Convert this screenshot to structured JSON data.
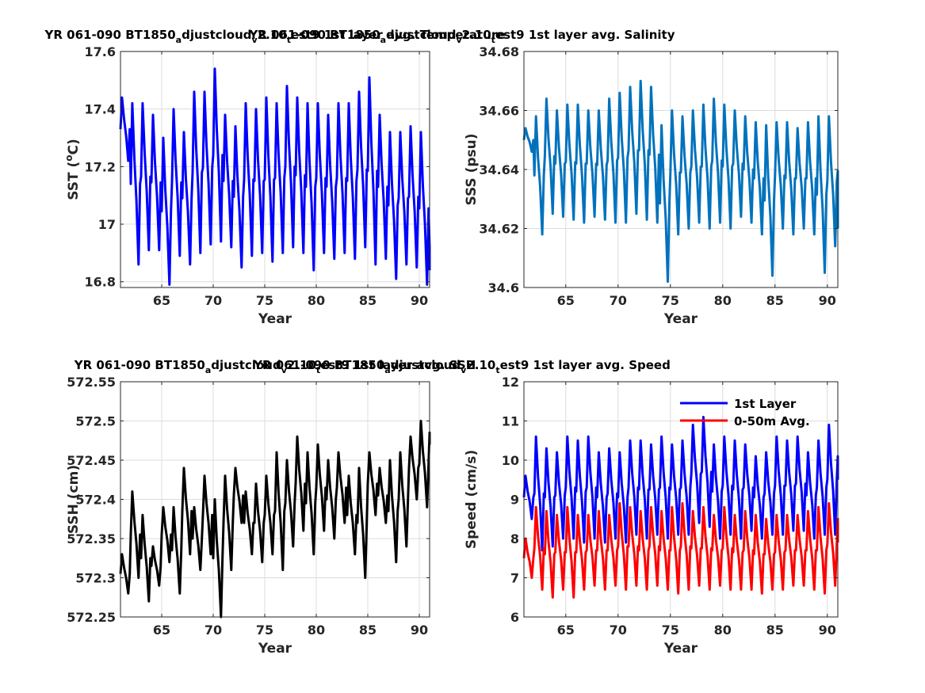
{
  "chart_data": [
    {
      "type": "line",
      "title": "YR 061-090 BT1850_adjustcloud_v2.10_test9 1st layer avg. Temperature",
      "title_parts": [
        "YR 061-090 BT1850",
        "a",
        "djustcloud",
        "v",
        "2.10",
        "t",
        "est9 1st layer avg. Temperature"
      ],
      "xlabel": "Year",
      "ylabel": "SST (",
      "ylabel_sup": "o",
      "ylabel_rest": "C)",
      "xlim": [
        61,
        91
      ],
      "ylim": [
        16.78,
        17.6
      ],
      "xticks": [
        65,
        70,
        75,
        80,
        85,
        90
      ],
      "yticks": [
        16.8,
        17,
        17.2,
        17.4,
        17.6
      ],
      "ytick_labels": [
        "16.8",
        "17",
        "17.2",
        "17.4",
        "17.6"
      ],
      "grid": true,
      "series": [
        {
          "color": "#0000ff",
          "linewidth": 3,
          "x": [
            61,
            62,
            63,
            64,
            65,
            66,
            67,
            68,
            69,
            70,
            71,
            72,
            73,
            74,
            75,
            76,
            77,
            78,
            79,
            80,
            81,
            82,
            83,
            84,
            85,
            86,
            87,
            88,
            89,
            90,
            91
          ],
          "max": [
            17.44,
            17.42,
            17.42,
            17.38,
            17.3,
            17.4,
            17.32,
            17.46,
            17.46,
            17.54,
            17.38,
            17.34,
            17.42,
            17.4,
            17.44,
            17.42,
            17.48,
            17.44,
            17.42,
            17.42,
            17.38,
            17.42,
            17.42,
            17.46,
            17.51,
            17.38,
            17.32,
            17.32,
            17.34,
            17.32,
            17.0
          ],
          "min": [
            17.22,
            16.86,
            16.91,
            16.91,
            16.79,
            16.89,
            16.86,
            16.9,
            16.93,
            16.94,
            16.92,
            16.85,
            16.89,
            16.9,
            16.87,
            16.9,
            16.92,
            16.9,
            16.84,
            16.9,
            16.88,
            16.9,
            16.88,
            16.92,
            16.86,
            16.88,
            16.81,
            16.86,
            16.85,
            16.79,
            16.84
          ]
        }
      ]
    },
    {
      "type": "line",
      "title": "YR 061-090 BT1850_adjustcloud_v2.10_test9 1st layer avg. Salinity",
      "title_parts": [
        "YR 061-090 BT1850",
        "a",
        "djustcloud",
        "v",
        "2.10",
        "t",
        "est9 1st layer avg. Salinity"
      ],
      "xlabel": "Year",
      "ylabel": "SSS (psu)",
      "xlim": [
        61,
        91
      ],
      "ylim": [
        34.6,
        34.68
      ],
      "xticks": [
        65,
        70,
        75,
        80,
        85,
        90
      ],
      "yticks": [
        34.6,
        34.62,
        34.64,
        34.66,
        34.68
      ],
      "ytick_labels": [
        "34.6",
        "34.62",
        "34.64",
        "34.66",
        "34.68"
      ],
      "grid": true,
      "series": [
        {
          "color": "#0072bd",
          "linewidth": 3,
          "x": [
            61,
            62,
            63,
            64,
            65,
            66,
            67,
            68,
            69,
            70,
            71,
            72,
            73,
            74,
            75,
            76,
            77,
            78,
            79,
            80,
            81,
            82,
            83,
            84,
            85,
            86,
            87,
            88,
            89,
            90,
            91
          ],
          "max": [
            34.654,
            34.658,
            34.664,
            34.66,
            34.662,
            34.662,
            34.66,
            34.66,
            34.664,
            34.666,
            34.668,
            34.67,
            34.668,
            34.655,
            34.66,
            34.658,
            34.66,
            34.662,
            34.664,
            34.662,
            34.66,
            34.658,
            34.656,
            34.655,
            34.656,
            34.656,
            34.654,
            34.656,
            34.658,
            34.658,
            34.659
          ],
          "min": [
            34.646,
            34.618,
            34.625,
            34.624,
            34.623,
            34.622,
            34.624,
            34.623,
            34.622,
            34.622,
            34.625,
            34.623,
            34.622,
            34.602,
            34.618,
            34.62,
            34.622,
            34.62,
            34.622,
            34.62,
            34.624,
            34.622,
            34.618,
            34.604,
            34.62,
            34.618,
            34.62,
            34.618,
            34.605,
            34.614,
            34.62
          ]
        }
      ]
    },
    {
      "type": "line",
      "title": "YR 061-090 BT1850_adjustcloud_v2.10_test9 1st layer avg. SSH",
      "title_parts": [
        "YR 061-090 BT1850",
        "a",
        "djustcloud",
        "v",
        "2.10",
        "t",
        "est9 1st layer avg. SSH"
      ],
      "xlabel": "Year",
      "ylabel": "SSH (cm)",
      "xlim": [
        61,
        91
      ],
      "ylim": [
        572.25,
        572.55
      ],
      "xticks": [
        65,
        70,
        75,
        80,
        85,
        90
      ],
      "yticks": [
        572.25,
        572.3,
        572.35,
        572.4,
        572.45,
        572.5,
        572.55
      ],
      "ytick_labels": [
        "572.25",
        "572.3",
        "572.35",
        "572.4",
        "572.45",
        "572.5",
        "572.55"
      ],
      "grid": true,
      "series": [
        {
          "color": "#000000",
          "linewidth": 3,
          "x": [
            61,
            62,
            63,
            64,
            65,
            66,
            67,
            68,
            69,
            70,
            71,
            72,
            73,
            74,
            75,
            76,
            77,
            78,
            79,
            80,
            81,
            82,
            83,
            84,
            85,
            86,
            87,
            88,
            89,
            90,
            91
          ],
          "max": [
            572.33,
            572.41,
            572.38,
            572.34,
            572.39,
            572.39,
            572.44,
            572.39,
            572.43,
            572.4,
            572.43,
            572.44,
            572.41,
            572.42,
            572.43,
            572.46,
            572.45,
            572.48,
            572.46,
            572.47,
            572.45,
            572.46,
            572.43,
            572.44,
            572.46,
            572.44,
            572.45,
            572.46,
            572.48,
            572.5,
            572.5
          ],
          "min": [
            572.28,
            572.3,
            572.27,
            572.29,
            572.32,
            572.28,
            572.33,
            572.31,
            572.33,
            572.25,
            572.31,
            572.37,
            572.33,
            572.32,
            572.33,
            572.31,
            572.34,
            572.36,
            572.33,
            572.36,
            572.35,
            572.37,
            572.33,
            572.3,
            572.38,
            572.37,
            572.32,
            572.34,
            572.4,
            572.39,
            572.47
          ]
        }
      ]
    },
    {
      "type": "line",
      "title": "YR 061-090 BT1850_adjustcloud_v2.10_test9 1st layer avg. Speed",
      "title_parts": [
        "YR 061-090 BT1850",
        "a",
        "djustcloud",
        "v",
        "2.10",
        "t",
        "est9 1st layer avg. Speed"
      ],
      "xlabel": "Year",
      "ylabel": "Speed (cm/s)",
      "xlim": [
        61,
        91
      ],
      "ylim": [
        6,
        12
      ],
      "xticks": [
        65,
        70,
        75,
        80,
        85,
        90
      ],
      "yticks": [
        6,
        7,
        8,
        9,
        10,
        11,
        12
      ],
      "ytick_labels": [
        "6",
        "7",
        "8",
        "9",
        "10",
        "11",
        "12"
      ],
      "grid": true,
      "legend": "top-right",
      "series": [
        {
          "name": "1st Layer",
          "color": "#0000ff",
          "linewidth": 3,
          "x": [
            61,
            62,
            63,
            64,
            65,
            66,
            67,
            68,
            69,
            70,
            71,
            72,
            73,
            74,
            75,
            76,
            77,
            78,
            79,
            80,
            81,
            82,
            83,
            84,
            85,
            86,
            87,
            88,
            89,
            90,
            91
          ],
          "max": [
            9.6,
            10.6,
            10.3,
            10.2,
            10.6,
            10.5,
            10.6,
            10.2,
            10.3,
            10.2,
            10.5,
            10.5,
            10.4,
            10.6,
            10.4,
            10.5,
            10.9,
            11.1,
            10.4,
            10.6,
            10.5,
            10.4,
            10.1,
            10.2,
            10.6,
            10.5,
            10.6,
            10.2,
            10.5,
            10.9,
            10.7
          ],
          "min": [
            8.5,
            7.7,
            7.8,
            8.0,
            8.0,
            7.9,
            8.0,
            7.9,
            8.0,
            7.9,
            8.1,
            8.0,
            8.1,
            8.0,
            8.1,
            8.1,
            8.4,
            8.3,
            8.0,
            8.1,
            8.0,
            8.2,
            8.0,
            8.1,
            8.1,
            8.2,
            8.2,
            8.0,
            8.1,
            8.1,
            9.5
          ]
        },
        {
          "name": "0-50m Avg.",
          "color": "#ff0000",
          "linewidth": 3,
          "x": [
            61,
            62,
            63,
            64,
            65,
            66,
            67,
            68,
            69,
            70,
            71,
            72,
            73,
            74,
            75,
            76,
            77,
            78,
            79,
            80,
            81,
            82,
            83,
            84,
            85,
            86,
            87,
            88,
            89,
            90,
            91
          ],
          "max": [
            8.0,
            8.8,
            8.7,
            8.6,
            8.8,
            8.6,
            8.6,
            8.7,
            8.6,
            8.9,
            8.8,
            8.7,
            8.8,
            8.7,
            8.8,
            8.9,
            8.7,
            8.8,
            8.6,
            8.8,
            8.6,
            8.7,
            8.6,
            8.5,
            8.6,
            8.6,
            8.6,
            8.7,
            8.8,
            8.9,
            9.1
          ],
          "min": [
            7.0,
            6.7,
            6.5,
            6.7,
            6.5,
            6.7,
            6.8,
            6.7,
            6.8,
            6.7,
            6.8,
            6.7,
            6.8,
            6.7,
            6.6,
            6.7,
            6.8,
            6.7,
            6.8,
            6.7,
            6.7,
            6.7,
            6.6,
            6.7,
            6.7,
            6.8,
            6.8,
            6.7,
            6.6,
            6.8,
            7.9
          ]
        }
      ]
    }
  ]
}
